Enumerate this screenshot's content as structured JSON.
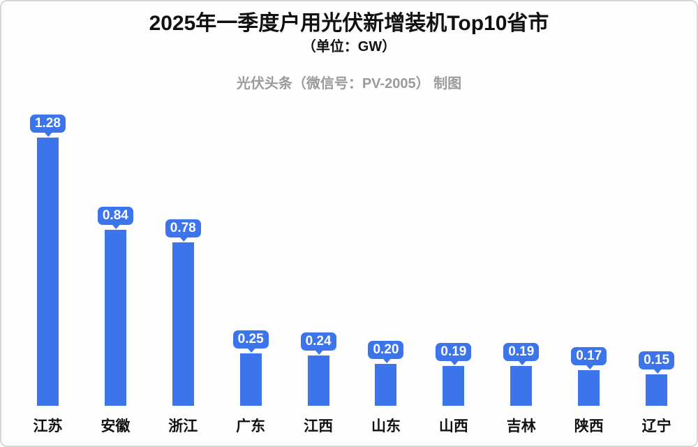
{
  "header": {
    "title": "2025年一季度户用光伏新增装机Top10省市",
    "subtitle": "（单位：GW）",
    "credit": "光伏头条（微信号：PV-2005） 制图"
  },
  "colors": {
    "bar": "#3c74ec",
    "bubble_text": "#ffffff",
    "title_text": "#111111",
    "credit_text": "#9b9b9b",
    "page_border": "#d6d6d6",
    "background": "#fefefe"
  },
  "chart_data": {
    "type": "bar",
    "title": "2025年一季度户用光伏新增装机Top10省市",
    "subtitle": "（单位：GW）",
    "unit": "GW",
    "categories": [
      "江苏",
      "安徽",
      "浙江",
      "广东",
      "江西",
      "山东",
      "山西",
      "吉林",
      "陕西",
      "辽宁"
    ],
    "values": [
      1.28,
      0.84,
      0.78,
      0.25,
      0.24,
      0.2,
      0.19,
      0.19,
      0.17,
      0.15
    ],
    "value_labels": [
      "1.28",
      "0.84",
      "0.78",
      "0.25",
      "0.24",
      "0.20",
      "0.19",
      "0.19",
      "0.17",
      "0.15"
    ],
    "xlabel": "",
    "ylabel": "GW",
    "ylim": [
      0,
      1.4
    ],
    "grid": false,
    "legend": false,
    "annotation_style": "callout-bubble-above-bar"
  }
}
